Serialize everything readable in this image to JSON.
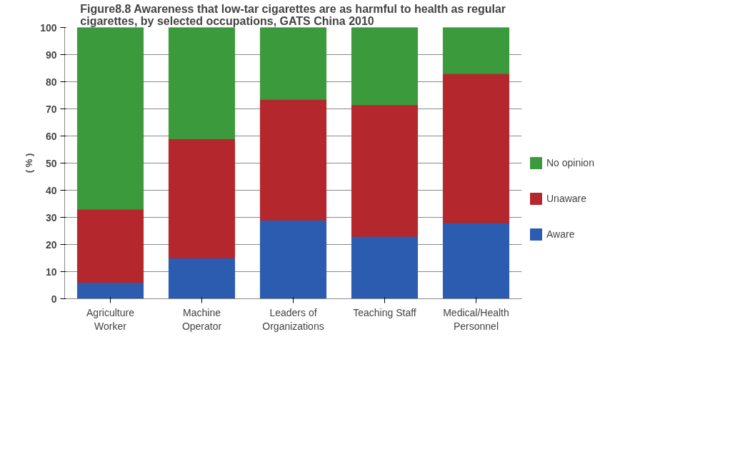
{
  "chart_data": {
    "type": "bar",
    "stacked": true,
    "title": "Figure8.8 Awareness that low-tar cigarettes are as harmful to health as regular cigarettes, by selected occupations, GATS China 2010",
    "ylabel": "( % )",
    "categories": [
      "Agriculture Worker",
      "Machine Operator",
      "Leaders of Organizations",
      "Teaching Staff",
      "Medical/Health Personnel"
    ],
    "series": [
      {
        "name": "Aware",
        "color": "#2b5caf",
        "values": [
          6,
          15,
          29,
          23,
          28
        ]
      },
      {
        "name": "Unaware",
        "color": "#b3272d",
        "values": [
          27,
          44,
          44.5,
          48.5,
          55
        ]
      },
      {
        "name": "No opinion",
        "color": "#3b9a3b",
        "values": [
          67,
          41,
          26.5,
          28.5,
          17
        ]
      }
    ],
    "ylim": [
      0,
      100
    ],
    "yticks": [
      0,
      10,
      20,
      30,
      40,
      50,
      60,
      70,
      80,
      90,
      100
    ],
    "grid": "y",
    "legend": "right"
  }
}
